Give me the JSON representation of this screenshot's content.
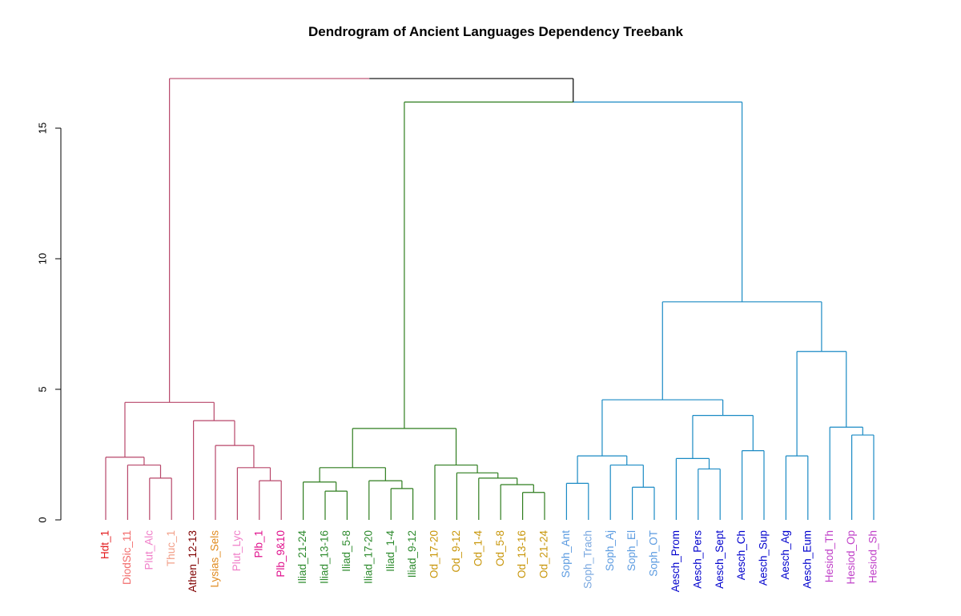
{
  "chart_data": {
    "type": "dendrogram",
    "title": "Dendrogram of Ancient Languages Dependency Treebank",
    "xlabel": "",
    "ylabel": "",
    "ylim": [
      0,
      17
    ],
    "yticks": [
      0,
      5,
      10,
      15
    ],
    "grid": false,
    "leaves": [
      {
        "label": "Hdt_1",
        "color": "#e31a1c"
      },
      {
        "label": "DiodSic_11",
        "color": "#f26b6b"
      },
      {
        "label": "Plut_Alc",
        "color": "#f07ec8"
      },
      {
        "label": "Thuc_1",
        "color": "#f2a08a"
      },
      {
        "label": "Athen_12-13",
        "color": "#800000"
      },
      {
        "label": "Lysias_Sels",
        "color": "#e08a1e"
      },
      {
        "label": "Plut_Lyc",
        "color": "#f07ec8"
      },
      {
        "label": "Plb_1",
        "color": "#e0108c"
      },
      {
        "label": "Plb_9&10",
        "color": "#e0108c"
      },
      {
        "label": "Iliad_21-24",
        "color": "#2e8b2e"
      },
      {
        "label": "Iliad_13-16",
        "color": "#2e8b2e"
      },
      {
        "label": "Iliad_5-8",
        "color": "#2e8b2e"
      },
      {
        "label": "Iliad_17-20",
        "color": "#2e8b2e"
      },
      {
        "label": "Iliad_1-4",
        "color": "#2e8b2e"
      },
      {
        "label": "Iliad_9-12",
        "color": "#2e8b2e"
      },
      {
        "label": "Od_17-20",
        "color": "#c8960a"
      },
      {
        "label": "Od_9-12",
        "color": "#c8960a"
      },
      {
        "label": "Od_1-4",
        "color": "#c8960a"
      },
      {
        "label": "Od_5-8",
        "color": "#c8960a"
      },
      {
        "label": "Od_13-16",
        "color": "#c8960a"
      },
      {
        "label": "Od_21-24",
        "color": "#c8960a"
      },
      {
        "label": "Soph_Ant",
        "color": "#5a9ae0"
      },
      {
        "label": "Soph_Trach",
        "color": "#7aa8e0"
      },
      {
        "label": "Soph_Aj",
        "color": "#5a9ae0"
      },
      {
        "label": "Soph_El",
        "color": "#5a9ae0"
      },
      {
        "label": "Soph_OT",
        "color": "#5a9ae0"
      },
      {
        "label": "Aesch_Prom",
        "color": "#0000cd"
      },
      {
        "label": "Aesch_Pers",
        "color": "#0000cd"
      },
      {
        "label": "Aesch_Sept",
        "color": "#0000cd"
      },
      {
        "label": "Aesch_Ch",
        "color": "#0000cd"
      },
      {
        "label": "Aesch_Sup",
        "color": "#0000cd"
      },
      {
        "label": "Aesch_Ag",
        "color": "#0000cd"
      },
      {
        "label": "Aesch_Eum",
        "color": "#0000cd"
      },
      {
        "label": "Hesiod_Th",
        "color": "#c040c8"
      },
      {
        "label": "Hesiod_Op",
        "color": "#c040c8"
      },
      {
        "label": "Hesiod_Sh",
        "color": "#c040c8"
      }
    ],
    "merges": [
      {
        "a": "L15",
        "b": "L16",
        "h": 1.6,
        "color": "#b8476a"
      },
      {
        "a": "L14",
        "b": "N1",
        "h": 2.1,
        "color": "#b8476a"
      },
      {
        "a": "L13",
        "b": "N2",
        "h": 2.4,
        "color": "#b8476a"
      },
      {
        "a": "L8",
        "b": "L9",
        "h": 1.5,
        "color": "#b8476a"
      },
      {
        "a": "L7",
        "b": "N4",
        "h": 2.0,
        "color": "#b8476a"
      },
      {
        "a": "L6",
        "b": "N5",
        "h": 2.85,
        "color": "#b8476a"
      },
      {
        "a": "L5",
        "b": "N6",
        "h": 3.8,
        "color": "#b8476a"
      },
      {
        "a": "N3",
        "b": "N7",
        "h": 4.5,
        "color": "#b8476a"
      },
      {
        "a": "L11",
        "b": "L12",
        "h": 1.1,
        "color": "#2e7d1e"
      },
      {
        "a": "L10",
        "b": "N9",
        "h": 1.45,
        "color": "#2e7d1e"
      },
      {
        "a": "L14b",
        "b": "L15b",
        "h": 1.2,
        "color": "#2e7d1e"
      },
      {
        "a": "L13b",
        "b": "N11",
        "h": 1.5,
        "color": "#2e7d1e"
      },
      {
        "a": "N10",
        "b": "N12",
        "h": 2.0,
        "color": "#2e7d1e"
      },
      {
        "a": "L20",
        "b": "L21",
        "h": 1.05,
        "color": "#2e7d1e"
      },
      {
        "a": "L19",
        "b": "N14",
        "h": 1.35,
        "color": "#2e7d1e"
      },
      {
        "a": "L18",
        "b": "N15",
        "h": 1.6,
        "color": "#2e7d1e"
      },
      {
        "a": "L17",
        "b": "N16",
        "h": 1.8,
        "color": "#2e7d1e"
      },
      {
        "a": "L16b",
        "b": "N17",
        "h": 2.1,
        "color": "#2e7d1e"
      },
      {
        "a": "N13",
        "b": "N18",
        "h": 3.5,
        "color": "#2e7d1e"
      },
      {
        "a": "L22",
        "b": "L23",
        "h": 1.4,
        "color": "#1a8ac4"
      },
      {
        "a": "L25",
        "b": "L26",
        "h": 1.25,
        "color": "#1a8ac4"
      },
      {
        "a": "L24",
        "b": "N21",
        "h": 2.1,
        "color": "#1a8ac4"
      },
      {
        "a": "N20",
        "b": "N22",
        "h": 2.45,
        "color": "#1a8ac4"
      },
      {
        "a": "L28",
        "b": "L29",
        "h": 1.95,
        "color": "#1a8ac4"
      },
      {
        "a": "L27",
        "b": "N24",
        "h": 2.35,
        "color": "#1a8ac4"
      },
      {
        "a": "L30",
        "b": "L31",
        "h": 2.65,
        "color": "#1a8ac4"
      },
      {
        "a": "N25",
        "b": "N26",
        "h": 4.0,
        "color": "#1a8ac4"
      },
      {
        "a": "N23",
        "b": "N27",
        "h": 4.6,
        "color": "#1a8ac4"
      },
      {
        "a": "L32",
        "b": "L33",
        "h": 2.45,
        "color": "#1a8ac4"
      },
      {
        "a": "L35",
        "b": "L36",
        "h": 3.25,
        "color": "#1a8ac4"
      },
      {
        "a": "L34",
        "b": "N30",
        "h": 3.55,
        "color": "#1a8ac4"
      },
      {
        "a": "N29",
        "b": "N31",
        "h": 6.45,
        "color": "#1a8ac4"
      },
      {
        "a": "N28",
        "b": "N32",
        "h": 8.35,
        "color": "#1a8ac4"
      },
      {
        "a": "N19",
        "b": "N33",
        "h": 16.0,
        "color": "#2e7d1e/#1a8ac4"
      },
      {
        "a": "N8",
        "b": "N34",
        "h": 16.9,
        "color": "#b8476a/#000000"
      }
    ]
  }
}
